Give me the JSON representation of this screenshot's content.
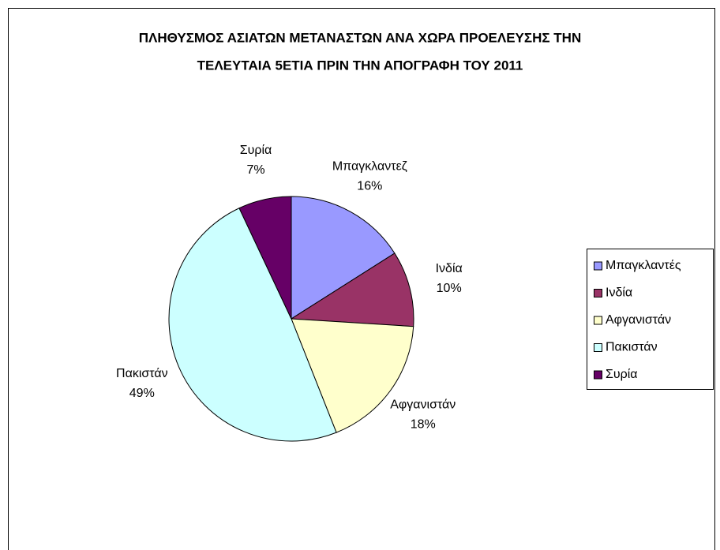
{
  "chart_data": {
    "type": "pie",
    "title": [
      "ΠΛΗΘΥΣΜΟΣ ΑΣΙΑΤΩΝ ΜΕΤΑΝΑΣΤΩΝ ΑΝΑ ΧΩΡΑ ΠΡΟΕΛΕΥΣΗΣ ΤΗΝ",
      "ΤΕΛΕΥΤΑΙΑ 5ΕΤΙΑ ΠΡΙΝ ΤΗΝ ΑΠΟΓΡΑΦΗ ΤΟΥ 2011"
    ],
    "categories": [
      "Μπαγκλαντές",
      "Ινδία",
      "Αφγανιστάν",
      "Πακιστάν",
      "Συρία"
    ],
    "data_label_names": [
      "Μπαγκλαντεζ",
      "Ινδία",
      "Αφγανιστάν",
      "Πακιστάν",
      "Συρία"
    ],
    "values": [
      16,
      10,
      18,
      49,
      7
    ],
    "value_labels": [
      "16%",
      "10%",
      "18%",
      "49%",
      "7%"
    ],
    "colors": [
      "#9999ff",
      "#993366",
      "#ffffcc",
      "#ccffff",
      "#660066"
    ],
    "legend": "right"
  }
}
